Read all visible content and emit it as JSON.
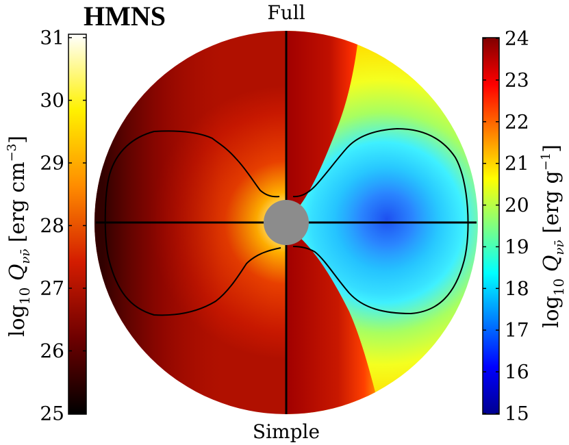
{
  "chart_data": {
    "type": "heatmap",
    "title": "HMNS",
    "top_label": "Full",
    "bottom_label": "Simple",
    "left_colorbar": {
      "label_prefix": "log",
      "label_sub": "10",
      "label_quantity": "Q",
      "label_quantity_sub": "νν̄",
      "label_units": "[erg cm",
      "label_units_exp": "−3",
      "label_units_close": "]",
      "colormap": "hot",
      "range": [
        25,
        31
      ],
      "ticks": [
        "25",
        "26",
        "27",
        "28",
        "29",
        "30",
        "31"
      ],
      "stops": [
        "#000000",
        "#6e0000",
        "#d31c00",
        "#ff8c00",
        "#fff100",
        "#ffffff"
      ]
    },
    "right_colorbar": {
      "label_prefix": "log",
      "label_sub": "10",
      "label_quantity": "Q",
      "label_quantity_sub": "νν̄",
      "label_units": "[erg g",
      "label_units_exp": "−1",
      "label_units_close": "]",
      "colormap": "jet",
      "range": [
        15,
        24
      ],
      "ticks": [
        "15",
        "16",
        "17",
        "18",
        "19",
        "20",
        "21",
        "22",
        "23",
        "24"
      ],
      "stops": [
        "#00008f",
        "#0000ff",
        "#0080ff",
        "#00ffff",
        "#80ff80",
        "#ffff00",
        "#ff8000",
        "#ff0000",
        "#800000"
      ]
    },
    "colors": {
      "central_object": "#8c8c8c",
      "contour": "#000000",
      "axis_lines": "#000000"
    }
  }
}
